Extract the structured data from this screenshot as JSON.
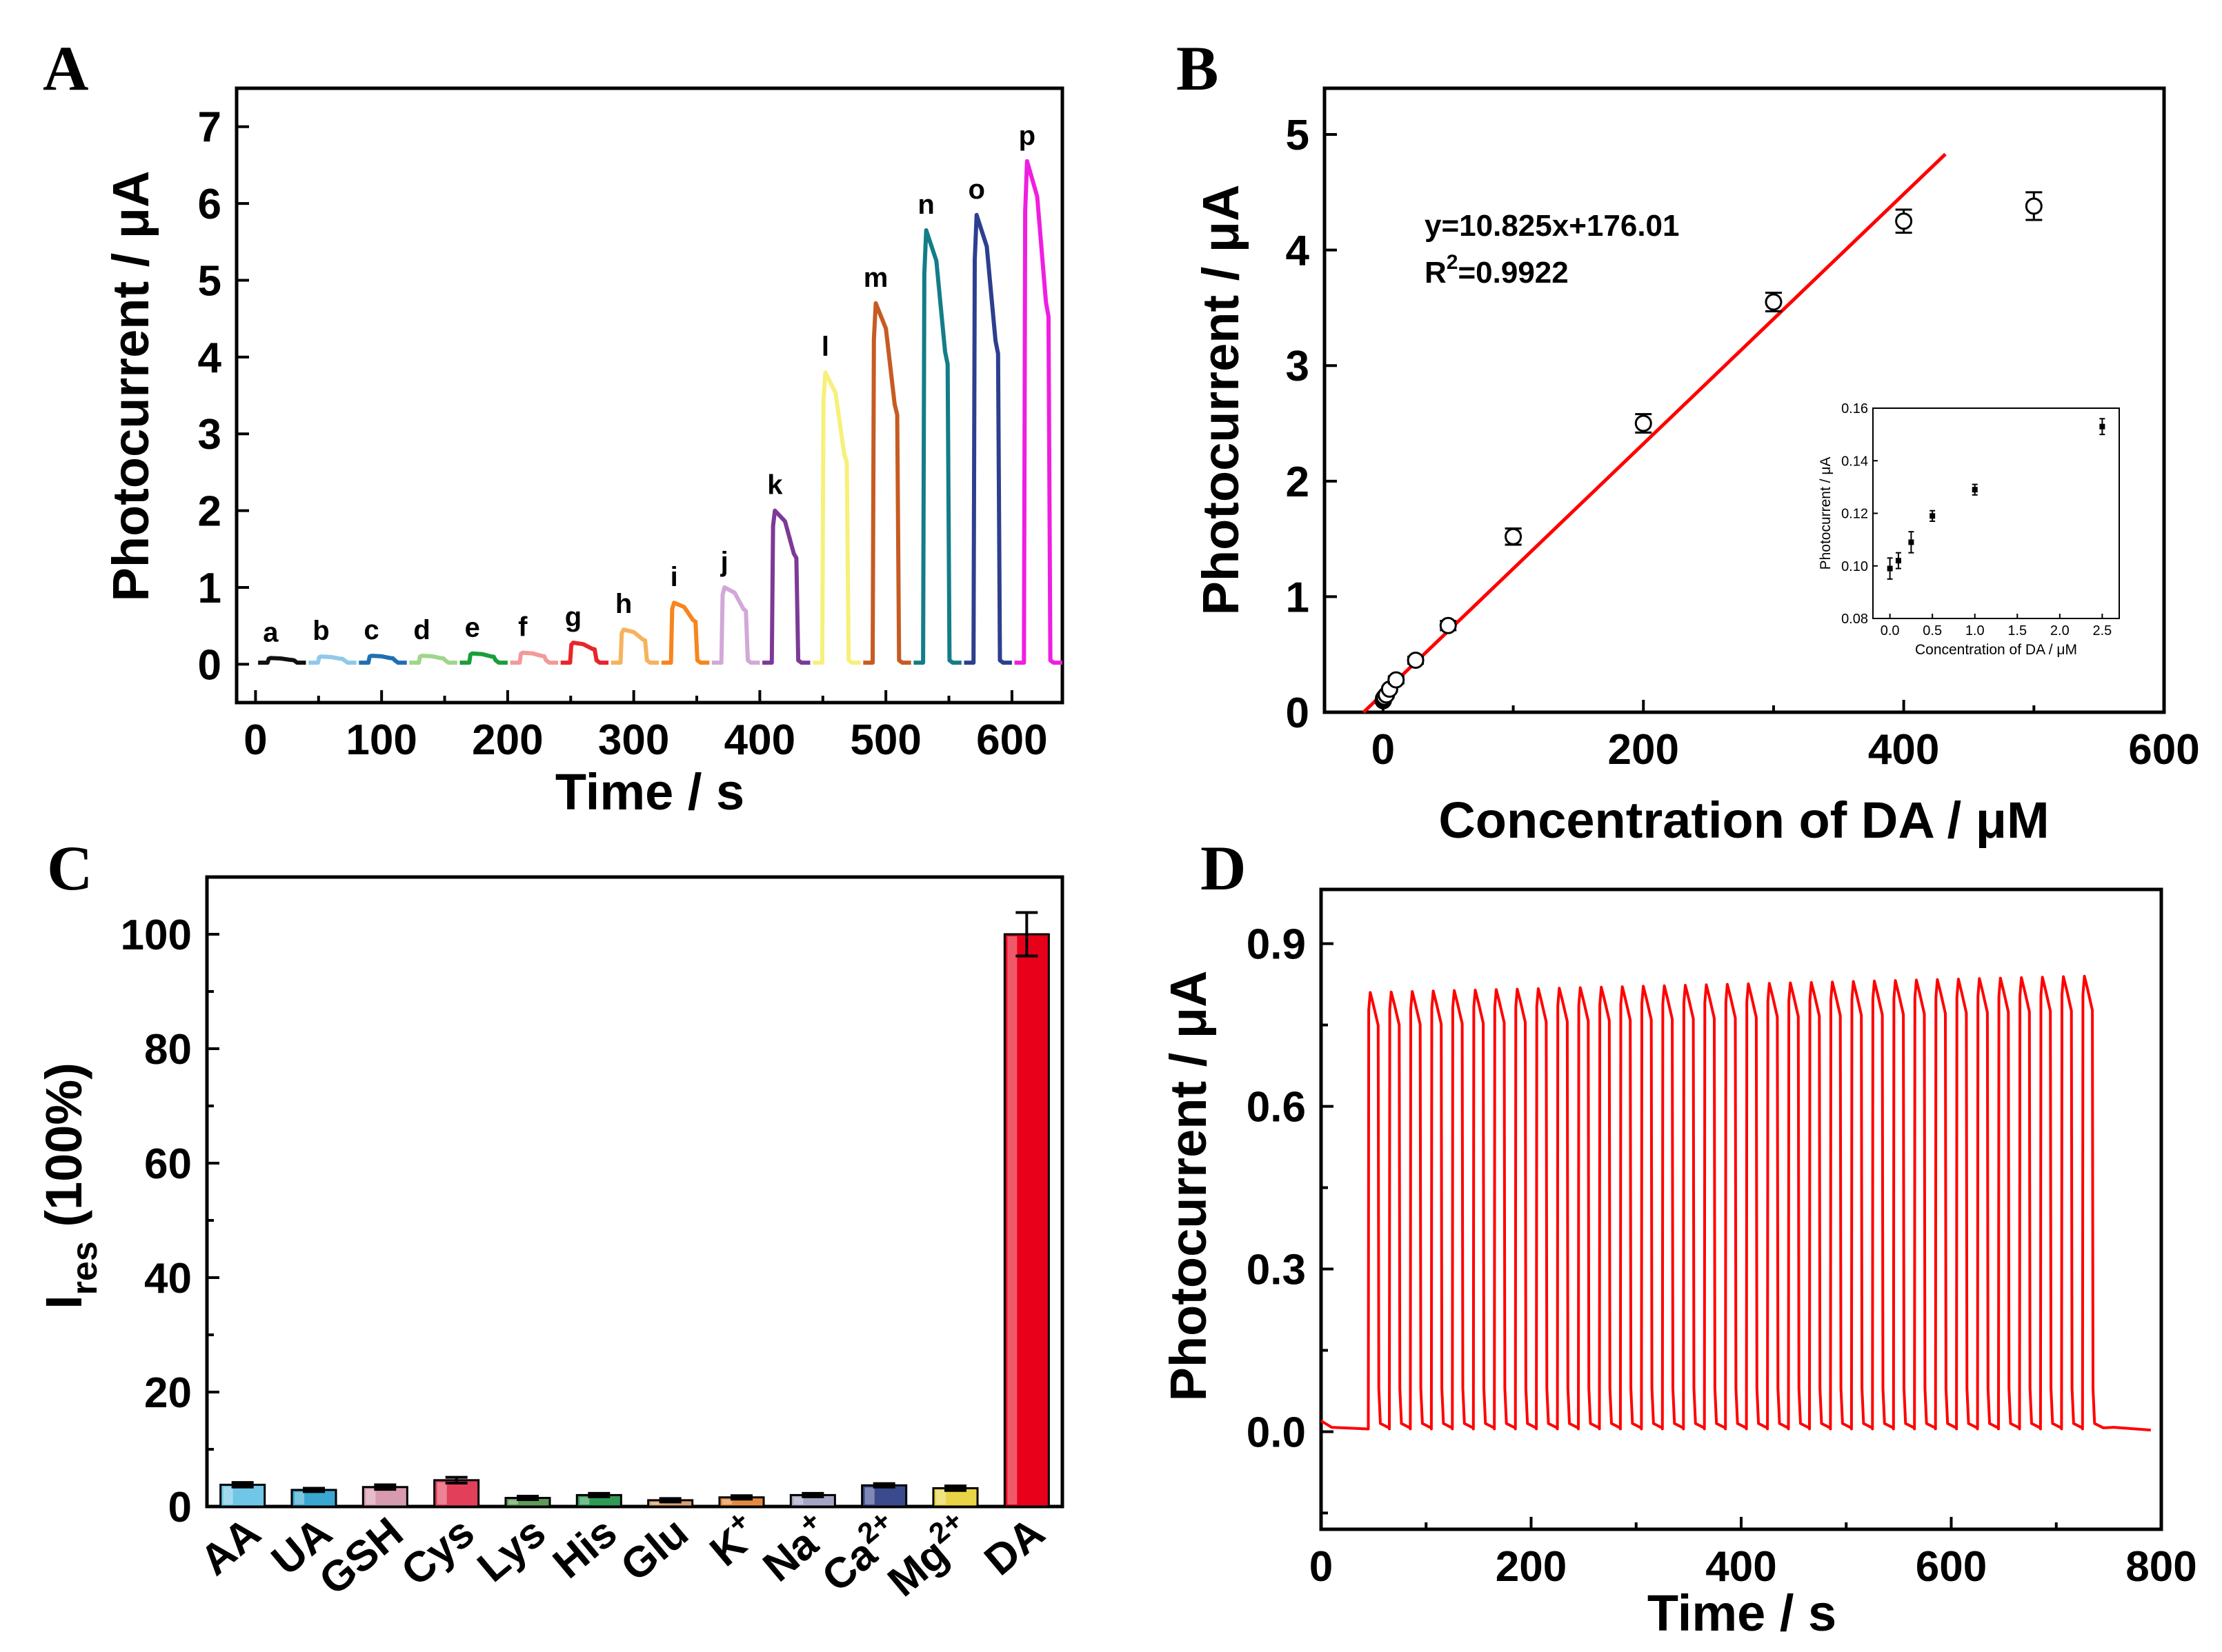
{
  "chart_data": [
    {
      "panel": "A",
      "type": "line",
      "xlabel": "Time / s",
      "ylabel": "Photocurrent / μA",
      "xlim": [
        -15,
        640
      ],
      "ylim": [
        -0.5,
        7.5
      ],
      "xticks": [
        0,
        100,
        200,
        300,
        400,
        500,
        600
      ],
      "yticks": [
        0,
        1,
        2,
        3,
        4,
        5,
        6,
        7
      ],
      "traces": [
        {
          "label": "a",
          "on": 10,
          "off": 30,
          "peak": 0.08,
          "color": "#111111"
        },
        {
          "label": "b",
          "on": 50,
          "off": 70,
          "peak": 0.1,
          "color": "#8fc9ea"
        },
        {
          "label": "c",
          "on": 90,
          "off": 110,
          "peak": 0.11,
          "color": "#1f6fb0"
        },
        {
          "label": "d",
          "on": 130,
          "off": 150,
          "peak": 0.11,
          "color": "#9fd68a"
        },
        {
          "label": "e",
          "on": 170,
          "off": 190,
          "peak": 0.14,
          "color": "#1a9e3a"
        },
        {
          "label": "f",
          "on": 210,
          "off": 230,
          "peak": 0.15,
          "color": "#f29a9a"
        },
        {
          "label": "g",
          "on": 250,
          "off": 270,
          "peak": 0.28,
          "color": "#e8262a"
        },
        {
          "label": "h",
          "on": 290,
          "off": 310,
          "peak": 0.45,
          "color": "#f6b35e"
        },
        {
          "label": "i",
          "on": 330,
          "off": 350,
          "peak": 0.8,
          "color": "#f7851e"
        },
        {
          "label": "j",
          "on": 370,
          "off": 390,
          "peak": 1.0,
          "color": "#d2a8d8"
        },
        {
          "label": "k",
          "on": 410,
          "off": 430,
          "peak": 2.0,
          "color": "#7c3a96"
        },
        {
          "label": "l",
          "on": 450,
          "off": 470,
          "peak": 3.8,
          "color": "#f7f07a"
        },
        {
          "label": "m",
          "on": 490,
          "off": 510,
          "peak": 4.7,
          "color": "#c75b22"
        },
        {
          "label": "n",
          "on": 530,
          "off": 550,
          "peak": 5.65,
          "color": "#137d88"
        },
        {
          "label": "o",
          "on": 570,
          "off": 590,
          "peak": 5.85,
          "color": "#2d3f8f"
        },
        {
          "label": "p",
          "on": 610,
          "off": 630,
          "peak": 6.55,
          "color": "#f01ee0"
        }
      ]
    },
    {
      "panel": "B",
      "type": "scatter",
      "xlabel": "Concentration of DA / μM",
      "ylabel": "Photocurrent / μA",
      "xlim": [
        -45,
        600
      ],
      "ylim": [
        0,
        5.4
      ],
      "xticks": [
        0,
        200,
        400,
        600
      ],
      "yticks": [
        0,
        1,
        2,
        3,
        4,
        5
      ],
      "equation": "y=10.825x+176.01",
      "r2_prefix": "R",
      "r2_sup": "2",
      "r2_value": "=0.9922",
      "fit_line": {
        "x": [
          -15,
          432
        ],
        "y": [
          0,
          4.83
        ],
        "color": "#ff0000"
      },
      "points": [
        {
          "x": 0.1,
          "y": 0.1,
          "err": 0.02
        },
        {
          "x": 0.25,
          "y": 0.11,
          "err": 0.02
        },
        {
          "x": 0.5,
          "y": 0.12,
          "err": 0.02
        },
        {
          "x": 1,
          "y": 0.13,
          "err": 0.02
        },
        {
          "x": 2.5,
          "y": 0.15,
          "err": 0.02
        },
        {
          "x": 5,
          "y": 0.2,
          "err": 0.02
        },
        {
          "x": 10,
          "y": 0.28,
          "err": 0.03
        },
        {
          "x": 25,
          "y": 0.45,
          "err": 0.03
        },
        {
          "x": 50,
          "y": 0.75,
          "err": 0.04
        },
        {
          "x": 100,
          "y": 1.52,
          "err": 0.07
        },
        {
          "x": 200,
          "y": 2.5,
          "err": 0.08
        },
        {
          "x": 300,
          "y": 3.55,
          "err": 0.08
        },
        {
          "x": 400,
          "y": 4.25,
          "err": 0.1
        },
        {
          "x": 500,
          "y": 4.38,
          "err": 0.12
        }
      ],
      "inset": {
        "xlabel": "Concentration of DA / μM",
        "ylabel": "Photocurrent / μA",
        "xlim": [
          -0.2,
          2.7
        ],
        "ylim": [
          0.08,
          0.16
        ],
        "xticks": [
          "0.0",
          "0.5",
          "1.0",
          "1.5",
          "2.0",
          "2.5"
        ],
        "yticks": [
          "0.08",
          "0.10",
          "0.12",
          "0.14",
          "0.16"
        ],
        "points": [
          {
            "x": 0.0,
            "y": 0.099,
            "err": 0.004
          },
          {
            "x": 0.1,
            "y": 0.102,
            "err": 0.003
          },
          {
            "x": 0.25,
            "y": 0.109,
            "err": 0.004
          },
          {
            "x": 0.5,
            "y": 0.119,
            "err": 0.002
          },
          {
            "x": 1.0,
            "y": 0.129,
            "err": 0.002
          },
          {
            "x": 2.5,
            "y": 0.153,
            "err": 0.003
          }
        ]
      }
    },
    {
      "panel": "C",
      "type": "bar",
      "ylabel_main": "I",
      "ylabel_sub": "res",
      "ylabel_tail": " (100%)",
      "ylim": [
        0,
        110
      ],
      "yticks": [
        0,
        20,
        40,
        60,
        80,
        100
      ],
      "categories": [
        {
          "base": "AA",
          "sup": ""
        },
        {
          "base": "UA",
          "sup": ""
        },
        {
          "base": "GSH",
          "sup": ""
        },
        {
          "base": "Cys",
          "sup": ""
        },
        {
          "base": "Lys",
          "sup": ""
        },
        {
          "base": "His",
          "sup": ""
        },
        {
          "base": "Glu",
          "sup": ""
        },
        {
          "base": "K",
          "sup": "+"
        },
        {
          "base": "Na",
          "sup": "+"
        },
        {
          "base": "Ca",
          "sup": "2+"
        },
        {
          "base": "Mg",
          "sup": "2+"
        },
        {
          "base": "DA",
          "sup": ""
        }
      ],
      "values": [
        3.8,
        2.9,
        3.4,
        4.6,
        1.5,
        2.0,
        1.1,
        1.6,
        2.0,
        3.7,
        3.2,
        100
      ],
      "errors": [
        0.4,
        0.3,
        0.4,
        0.5,
        0.3,
        0.3,
        0.3,
        0.3,
        0.3,
        0.3,
        0.4,
        3.8
      ],
      "colors": [
        "#6fc6e6",
        "#3aa6d2",
        "#d79aae",
        "#e23f5b",
        "#5e9a58",
        "#2e9a55",
        "#d8a070",
        "#e48a40",
        "#a4a4c4",
        "#3b4a8c",
        "#e8d445",
        "#e8001a"
      ]
    },
    {
      "panel": "D",
      "type": "line",
      "xlabel": "Time / s",
      "ylabel": "Photocurrent / μA",
      "xlim": [
        0,
        800
      ],
      "ylim": [
        -0.18,
        1.0
      ],
      "xticks": [
        0,
        200,
        400,
        600,
        800
      ],
      "yticks": [
        "0.0",
        "0.3",
        "0.6",
        "0.9"
      ],
      "series": {
        "color": "#ff0000",
        "period_s": 20,
        "first_on_s": 45,
        "cycles": 35,
        "baseline": 0.005,
        "peak_start": 0.81,
        "peak_end": 0.84,
        "end_s": 790
      }
    }
  ]
}
